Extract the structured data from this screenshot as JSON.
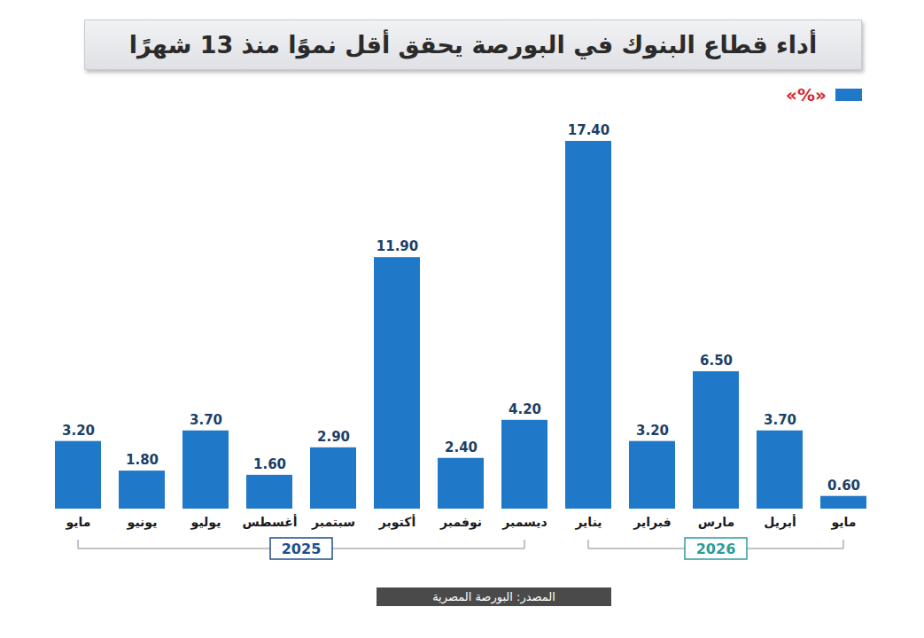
{
  "chart_data": {
    "type": "bar",
    "title": "أداء قطاع البنوك في البورصة يحقق أقل نموًا منذ 13 شهرًا",
    "categories": [
      "مايو",
      "يونيو",
      "يوليو",
      "أغسطس",
      "سبتمبر",
      "أكتوبر",
      "نوفمبر",
      "ديسمبر",
      "يناير",
      "فبراير",
      "مارس",
      "أبريل",
      "مايو"
    ],
    "series": [
      {
        "name": "«%»",
        "color": "#1f78c8",
        "values": [
          3.2,
          1.8,
          3.7,
          1.6,
          2.9,
          11.9,
          2.4,
          4.2,
          17.4,
          3.2,
          6.5,
          3.7,
          0.6
        ],
        "value_labels": [
          "3.20",
          "1.80",
          "3.70",
          "1.60",
          "2.90",
          "11.90",
          "2.40",
          "4.20",
          "17.40",
          "3.20",
          "6.50",
          "3.70",
          "0.60"
        ]
      }
    ],
    "year_groups": [
      {
        "label": "2025",
        "count": 8
      },
      {
        "label": "2026",
        "count": 5
      }
    ],
    "source": "المصدر: البورصة المصرية",
    "data_labels": true,
    "tick_labels": "x",
    "legend": "top-right",
    "grid": false
  }
}
